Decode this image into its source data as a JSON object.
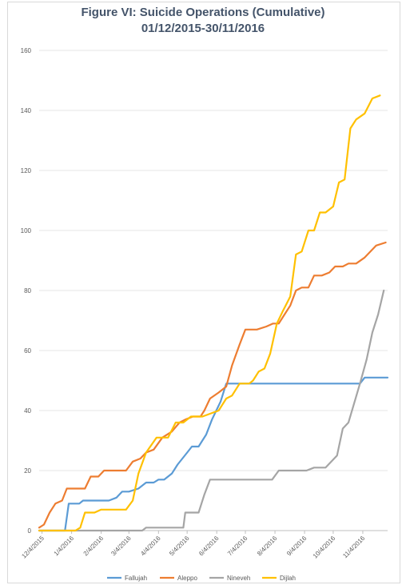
{
  "chart_data": {
    "type": "line",
    "title_line1": "Figure VI: Suicide Operations (Cumulative)",
    "title_line2": "01/12/2015-30/11/2016",
    "xlabel": "",
    "ylabel": "",
    "ylim": [
      0,
      160
    ],
    "yticks": [
      0,
      20,
      40,
      60,
      80,
      100,
      120,
      140,
      160
    ],
    "xticks": [
      "12/4/2015",
      "1/4/2016",
      "2/4/2016",
      "3/4/2016",
      "4/4/2016",
      "5/4/2016",
      "6/4/2016",
      "7/4/2016",
      "8/4/2016",
      "9/4/2016",
      "10/4/2016",
      "11/4/2016"
    ],
    "grid": "horizontal",
    "legend": "bottom",
    "series": [
      {
        "name": "Fallujah",
        "color": "#5b9bd5",
        "points": [
          [
            "2015-12-01",
            0
          ],
          [
            "2015-12-28",
            0
          ],
          [
            "2016-01-01",
            9
          ],
          [
            "2016-01-12",
            9
          ],
          [
            "2016-01-16",
            10
          ],
          [
            "2016-02-12",
            10
          ],
          [
            "2016-02-20",
            11
          ],
          [
            "2016-02-26",
            13
          ],
          [
            "2016-03-04",
            13
          ],
          [
            "2016-03-14",
            14
          ],
          [
            "2016-03-22",
            16
          ],
          [
            "2016-03-30",
            16
          ],
          [
            "2016-04-04",
            17
          ],
          [
            "2016-04-10",
            17
          ],
          [
            "2016-04-18",
            19
          ],
          [
            "2016-04-24",
            22
          ],
          [
            "2016-05-04",
            26
          ],
          [
            "2016-05-09",
            28
          ],
          [
            "2016-05-16",
            28
          ],
          [
            "2016-05-24",
            32
          ],
          [
            "2016-05-30",
            37
          ],
          [
            "2016-06-08",
            43
          ],
          [
            "2016-06-14",
            49
          ],
          [
            "2016-06-22",
            49
          ],
          [
            "2016-10-26",
            49
          ],
          [
            "2016-11-01",
            49
          ],
          [
            "2016-11-06",
            51
          ],
          [
            "2016-11-30",
            51
          ]
        ]
      },
      {
        "name": "Aleppo",
        "color": "#ed7d31",
        "points": [
          [
            "2015-12-01",
            1
          ],
          [
            "2015-12-06",
            2
          ],
          [
            "2015-12-12",
            6
          ],
          [
            "2015-12-18",
            9
          ],
          [
            "2015-12-25",
            10
          ],
          [
            "2015-12-30",
            14
          ],
          [
            "2016-01-18",
            14
          ],
          [
            "2016-01-24",
            18
          ],
          [
            "2016-02-01",
            18
          ],
          [
            "2016-02-07",
            20
          ],
          [
            "2016-03-01",
            20
          ],
          [
            "2016-03-08",
            23
          ],
          [
            "2016-03-16",
            24
          ],
          [
            "2016-03-22",
            26
          ],
          [
            "2016-03-30",
            27
          ],
          [
            "2016-04-08",
            31
          ],
          [
            "2016-04-18",
            33
          ],
          [
            "2016-04-26",
            36
          ],
          [
            "2016-05-02",
            37
          ],
          [
            "2016-05-10",
            38
          ],
          [
            "2016-05-18",
            38
          ],
          [
            "2016-05-22",
            40
          ],
          [
            "2016-05-28",
            44
          ],
          [
            "2016-06-06",
            46
          ],
          [
            "2016-06-14",
            48
          ],
          [
            "2016-06-20",
            55
          ],
          [
            "2016-06-28",
            62
          ],
          [
            "2016-07-04",
            67
          ],
          [
            "2016-07-16",
            67
          ],
          [
            "2016-07-26",
            68
          ],
          [
            "2016-08-02",
            69
          ],
          [
            "2016-08-08",
            69
          ],
          [
            "2016-08-14",
            72
          ],
          [
            "2016-08-20",
            75
          ],
          [
            "2016-08-26",
            80
          ],
          [
            "2016-09-01",
            81
          ],
          [
            "2016-09-08",
            81
          ],
          [
            "2016-09-14",
            85
          ],
          [
            "2016-09-22",
            85
          ],
          [
            "2016-09-30",
            86
          ],
          [
            "2016-10-06",
            88
          ],
          [
            "2016-10-14",
            88
          ],
          [
            "2016-10-20",
            89
          ],
          [
            "2016-10-28",
            89
          ],
          [
            "2016-11-06",
            91
          ],
          [
            "2016-11-12",
            93
          ],
          [
            "2016-11-18",
            95
          ],
          [
            "2016-11-28",
            96
          ]
        ]
      },
      {
        "name": "Nineveh",
        "color": "#a5a5a5",
        "points": [
          [
            "2015-12-01",
            0
          ],
          [
            "2016-03-18",
            0
          ],
          [
            "2016-03-22",
            1
          ],
          [
            "2016-04-30",
            1
          ],
          [
            "2016-05-02",
            6
          ],
          [
            "2016-05-16",
            6
          ],
          [
            "2016-05-22",
            12
          ],
          [
            "2016-05-28",
            17
          ],
          [
            "2016-08-01",
            17
          ],
          [
            "2016-08-08",
            20
          ],
          [
            "2016-09-06",
            20
          ],
          [
            "2016-09-14",
            21
          ],
          [
            "2016-09-26",
            21
          ],
          [
            "2016-10-08",
            25
          ],
          [
            "2016-10-14",
            34
          ],
          [
            "2016-10-20",
            36
          ],
          [
            "2016-11-01",
            49
          ],
          [
            "2016-11-08",
            57
          ],
          [
            "2016-11-14",
            66
          ],
          [
            "2016-11-20",
            72
          ],
          [
            "2016-11-26",
            80
          ]
        ]
      },
      {
        "name": "Dijlah",
        "color": "#ffc000",
        "points": [
          [
            "2015-12-01",
            0
          ],
          [
            "2016-01-08",
            0
          ],
          [
            "2016-01-13",
            1
          ],
          [
            "2016-01-18",
            6
          ],
          [
            "2016-01-28",
            6
          ],
          [
            "2016-02-04",
            7
          ],
          [
            "2016-03-01",
            7
          ],
          [
            "2016-03-08",
            10
          ],
          [
            "2016-03-14",
            19
          ],
          [
            "2016-03-22",
            26
          ],
          [
            "2016-04-02",
            31
          ],
          [
            "2016-04-14",
            31
          ],
          [
            "2016-04-22",
            36
          ],
          [
            "2016-04-30",
            36
          ],
          [
            "2016-05-08",
            38
          ],
          [
            "2016-05-20",
            38
          ],
          [
            "2016-06-06",
            40
          ],
          [
            "2016-06-14",
            44
          ],
          [
            "2016-06-20",
            45
          ],
          [
            "2016-06-28",
            49
          ],
          [
            "2016-07-08",
            49
          ],
          [
            "2016-07-12",
            50
          ],
          [
            "2016-07-18",
            53
          ],
          [
            "2016-07-24",
            54
          ],
          [
            "2016-07-30",
            59
          ],
          [
            "2016-08-06",
            69
          ],
          [
            "2016-08-12",
            73
          ],
          [
            "2016-08-20",
            78
          ],
          [
            "2016-08-26",
            92
          ],
          [
            "2016-09-01",
            93
          ],
          [
            "2016-09-08",
            100
          ],
          [
            "2016-09-14",
            100
          ],
          [
            "2016-09-20",
            106
          ],
          [
            "2016-09-26",
            106
          ],
          [
            "2016-10-04",
            108
          ],
          [
            "2016-10-10",
            116
          ],
          [
            "2016-10-16",
            117
          ],
          [
            "2016-10-22",
            134
          ],
          [
            "2016-10-28",
            137
          ],
          [
            "2016-11-06",
            139
          ],
          [
            "2016-11-14",
            144
          ],
          [
            "2016-11-22",
            145
          ]
        ]
      }
    ]
  }
}
